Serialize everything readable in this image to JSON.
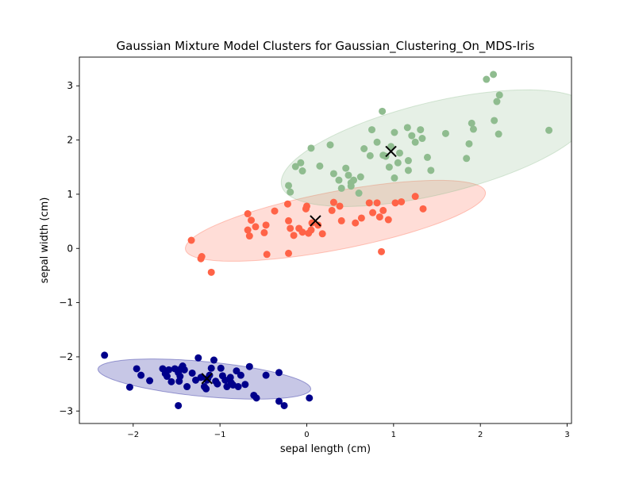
{
  "chart_data": {
    "type": "scatter",
    "title": "Gaussian Mixture Model Clusters for Gaussian_Clustering_On_MDS-Iris",
    "xlabel": "sepal length (cm)",
    "ylabel": "sepal width (cm)",
    "xlim": [
      -2.62,
      3.05
    ],
    "ylim": [
      -3.23,
      3.53
    ],
    "x_ticks": [
      -2,
      -1,
      0,
      1,
      2,
      3
    ],
    "x_tick_labels": [
      "−2",
      "−1",
      "0",
      "1",
      "2",
      "3"
    ],
    "y_ticks": [
      -3,
      -2,
      -1,
      0,
      1,
      2,
      3
    ],
    "y_tick_labels": [
      "−3",
      "−2",
      "−1",
      "0",
      "1",
      "2",
      "3"
    ],
    "grid": false,
    "legend": "none",
    "series": [
      {
        "color": "#00008b",
        "points": [
          [
            -2.33,
            -1.97
          ],
          [
            -2.04,
            -2.56
          ],
          [
            -1.96,
            -2.22
          ],
          [
            -1.91,
            -2.34
          ],
          [
            -1.81,
            -2.44
          ],
          [
            -1.66,
            -2.22
          ],
          [
            -1.63,
            -2.31
          ],
          [
            -1.61,
            -2.36
          ],
          [
            -1.59,
            -2.24
          ],
          [
            -1.56,
            -2.46
          ],
          [
            -1.52,
            -2.22
          ],
          [
            -1.48,
            -2.29
          ],
          [
            -1.47,
            -2.45
          ],
          [
            -1.46,
            -2.36
          ],
          [
            -1.45,
            -2.22
          ],
          [
            -1.43,
            -2.17
          ],
          [
            -1.41,
            -2.24
          ],
          [
            -1.38,
            -2.55
          ],
          [
            -1.32,
            -2.3
          ],
          [
            -1.28,
            -2.43
          ],
          [
            -1.25,
            -2.02
          ],
          [
            -1.22,
            -2.38
          ],
          [
            -1.18,
            -2.55
          ],
          [
            -1.15,
            -2.43
          ],
          [
            -1.14,
            -2.4
          ],
          [
            -1.12,
            -2.34
          ],
          [
            -1.1,
            -2.21
          ],
          [
            -1.07,
            -2.06
          ],
          [
            -1.05,
            -2.45
          ],
          [
            -1.03,
            -2.5
          ],
          [
            -0.99,
            -2.21
          ],
          [
            -0.97,
            -2.35
          ],
          [
            -0.94,
            -2.43
          ],
          [
            -0.92,
            -2.55
          ],
          [
            -0.88,
            -2.38
          ],
          [
            -0.87,
            -2.48
          ],
          [
            -0.85,
            -2.52
          ],
          [
            -0.81,
            -2.26
          ],
          [
            -0.79,
            -2.55
          ],
          [
            -0.76,
            -2.34
          ],
          [
            -0.71,
            -2.51
          ],
          [
            -0.66,
            -2.18
          ],
          [
            -0.61,
            -2.71
          ],
          [
            -0.58,
            -2.76
          ],
          [
            -0.47,
            -2.34
          ],
          [
            -0.32,
            -2.29
          ],
          [
            -0.32,
            -2.82
          ],
          [
            -0.26,
            -2.9
          ],
          [
            -1.48,
            -2.9
          ],
          [
            -1.16,
            -2.59
          ],
          [
            0.03,
            -2.76
          ]
        ],
        "center": [
          -1.15,
          -2.4
        ],
        "ellipse": {
          "center": [
            -1.18,
            -2.41
          ],
          "semi_axes": [
            1.24,
            0.32
          ],
          "angle_deg": -9,
          "color": "#00008b",
          "alpha": 0.22
        }
      },
      {
        "color": "#ff6347",
        "points": [
          [
            -1.33,
            0.15
          ],
          [
            -1.22,
            -0.19
          ],
          [
            -1.21,
            -0.15
          ],
          [
            -1.1,
            -0.44
          ],
          [
            -0.68,
            0.64
          ],
          [
            -0.68,
            0.34
          ],
          [
            -0.66,
            0.23
          ],
          [
            -0.64,
            0.52
          ],
          [
            -0.59,
            0.4
          ],
          [
            -0.49,
            0.29
          ],
          [
            -0.47,
            0.43
          ],
          [
            -0.46,
            -0.11
          ],
          [
            -0.37,
            0.69
          ],
          [
            -0.22,
            0.82
          ],
          [
            -0.21,
            0.51
          ],
          [
            -0.21,
            -0.09
          ],
          [
            -0.19,
            0.37
          ],
          [
            -0.15,
            0.24
          ],
          [
            -0.09,
            0.37
          ],
          [
            -0.05,
            0.3
          ],
          [
            -0.01,
            0.73
          ],
          [
            0.0,
            0.78
          ],
          [
            0.02,
            0.28
          ],
          [
            0.05,
            0.34
          ],
          [
            0.06,
            0.47
          ],
          [
            0.13,
            0.43
          ],
          [
            0.18,
            0.27
          ],
          [
            0.29,
            0.7
          ],
          [
            0.31,
            0.85
          ],
          [
            0.38,
            0.78
          ],
          [
            0.4,
            0.51
          ],
          [
            0.56,
            0.47
          ],
          [
            0.63,
            0.56
          ],
          [
            0.72,
            0.84
          ],
          [
            0.76,
            0.66
          ],
          [
            0.81,
            0.84
          ],
          [
            0.84,
            0.58
          ],
          [
            0.88,
            0.7
          ],
          [
            0.94,
            0.53
          ],
          [
            1.02,
            0.84
          ],
          [
            1.09,
            0.86
          ],
          [
            1.25,
            0.96
          ],
          [
            1.34,
            0.73
          ],
          [
            0.86,
            -0.06
          ]
        ],
        "center": [
          0.1,
          0.51
        ],
        "ellipse": {
          "center": [
            0.33,
            0.51
          ],
          "semi_axes": [
            1.81,
            0.52
          ],
          "angle_deg": 18,
          "color": "#ff6347",
          "alpha": 0.22
        }
      },
      {
        "color": "#8fbc8f",
        "points": [
          [
            -0.21,
            1.16
          ],
          [
            -0.19,
            1.04
          ],
          [
            -0.13,
            1.51
          ],
          [
            -0.07,
            1.58
          ],
          [
            -0.05,
            1.43
          ],
          [
            0.05,
            1.85
          ],
          [
            0.15,
            1.52
          ],
          [
            0.27,
            1.91
          ],
          [
            0.31,
            1.38
          ],
          [
            0.37,
            1.26
          ],
          [
            0.4,
            1.11
          ],
          [
            0.45,
            1.48
          ],
          [
            0.48,
            1.35
          ],
          [
            0.51,
            1.21
          ],
          [
            0.51,
            1.15
          ],
          [
            0.54,
            1.26
          ],
          [
            0.6,
            1.02
          ],
          [
            0.62,
            1.32
          ],
          [
            0.73,
            1.71
          ],
          [
            0.75,
            2.19
          ],
          [
            0.81,
            1.96
          ],
          [
            0.87,
            2.53
          ],
          [
            0.91,
            1.7
          ],
          [
            0.97,
            1.88
          ],
          [
            1.01,
            2.14
          ],
          [
            1.05,
            1.58
          ],
          [
            1.07,
            1.76
          ],
          [
            1.16,
            2.23
          ],
          [
            1.17,
            1.44
          ],
          [
            1.21,
            2.08
          ],
          [
            1.25,
            1.96
          ],
          [
            1.31,
            2.19
          ],
          [
            1.33,
            2.03
          ],
          [
            1.39,
            1.68
          ],
          [
            1.6,
            2.12
          ],
          [
            1.84,
            1.66
          ],
          [
            1.87,
            1.93
          ],
          [
            1.9,
            2.31
          ],
          [
            1.92,
            2.2
          ],
          [
            2.07,
            3.12
          ],
          [
            2.15,
            3.21
          ],
          [
            2.16,
            2.36
          ],
          [
            2.19,
            2.71
          ],
          [
            2.21,
            2.11
          ],
          [
            2.22,
            2.83
          ],
          [
            2.79,
            2.18
          ],
          [
            0.95,
            1.5
          ],
          [
            1.01,
            1.3
          ],
          [
            0.66,
            1.84
          ],
          [
            0.88,
            1.72
          ],
          [
            1.17,
            1.62
          ],
          [
            1.43,
            1.44
          ]
        ],
        "center": [
          0.97,
          1.79
        ],
        "ellipse": {
          "center": [
            1.49,
            1.85
          ],
          "semi_axes": [
            1.92,
            0.81
          ],
          "angle_deg": 24,
          "color": "#8fbc8f",
          "alpha": 0.22
        }
      }
    ]
  }
}
